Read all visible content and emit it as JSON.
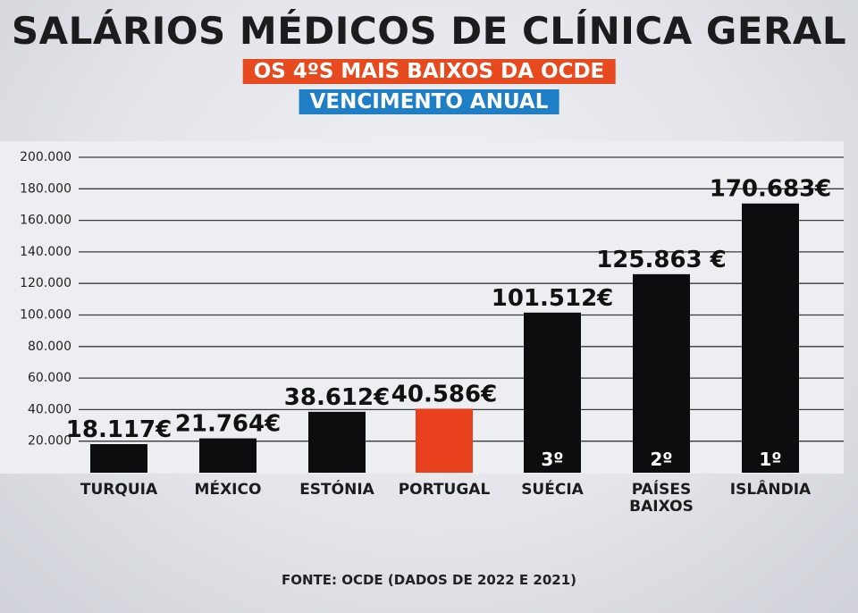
{
  "chart_data": {
    "type": "bar",
    "title": "SALÁRIOS MÉDICOS DE CLÍNICA GERAL",
    "subtitle": "OS 4ºS MAIS BAIXOS DA OCDE",
    "subtitle2": "VENCIMENTO ANUAL",
    "source": "FONTE: OCDE (DADOS DE 2022 E 2021)",
    "ylim": [
      0,
      200000
    ],
    "yticks": [
      20000,
      40000,
      60000,
      80000,
      100000,
      120000,
      140000,
      160000,
      180000,
      200000
    ],
    "ytick_labels": [
      "20.000",
      "40.000",
      "60.000",
      "80.000",
      "100.000",
      "120.000",
      "140.000",
      "160.000",
      "180.000",
      "200.000"
    ],
    "categories": [
      {
        "label": [
          "TURQUIA"
        ],
        "value": 18117,
        "value_label": "18.117€",
        "rank": "",
        "highlight": false
      },
      {
        "label": [
          "MÉXICO"
        ],
        "value": 21764,
        "value_label": "21.764€",
        "rank": "",
        "highlight": false
      },
      {
        "label": [
          "ESTÓNIA"
        ],
        "value": 38612,
        "value_label": "38.612€",
        "rank": "",
        "highlight": false
      },
      {
        "label": [
          "PORTUGAL"
        ],
        "value": 40586,
        "value_label": "40.586€",
        "rank": "",
        "highlight": true
      },
      {
        "label": [
          "SUÉCIA"
        ],
        "value": 101512,
        "value_label": "101.512€",
        "rank": "3º",
        "highlight": false
      },
      {
        "label": [
          "PAÍSES",
          "BAIXOS"
        ],
        "value": 125863,
        "value_label": "125.863 €",
        "rank": "2º",
        "highlight": false
      },
      {
        "label": [
          "ISLÂNDIA"
        ],
        "value": 170683,
        "value_label": "170.683€",
        "rank": "1º",
        "highlight": false
      }
    ],
    "colors": {
      "bar": "#0d0d0f",
      "highlight": "#e8401c",
      "highlight_text": "#c8321a",
      "grid": "#3a3a3a"
    }
  }
}
